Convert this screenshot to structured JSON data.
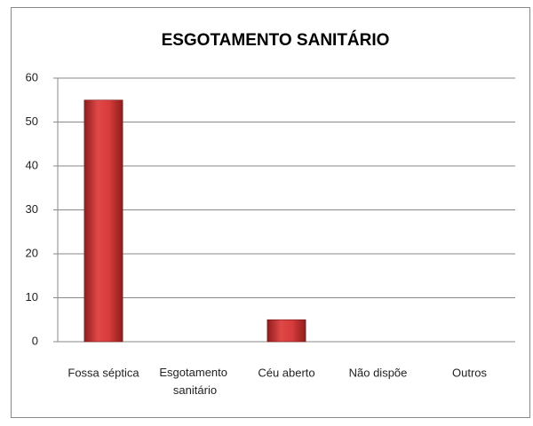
{
  "chart_data": {
    "type": "bar",
    "title": "ESGOTAMENTO SANITÁRIO",
    "categories": [
      "Fossa séptica",
      "Esgotamento sanitário",
      "Céu aberto",
      "Não dispõe",
      "Outros"
    ],
    "values": [
      55,
      0,
      5,
      0,
      0
    ],
    "color": "#c0302f",
    "ylim": [
      0,
      60
    ],
    "yticks": [
      0,
      10,
      20,
      30,
      40,
      50,
      60
    ],
    "grid": true
  }
}
